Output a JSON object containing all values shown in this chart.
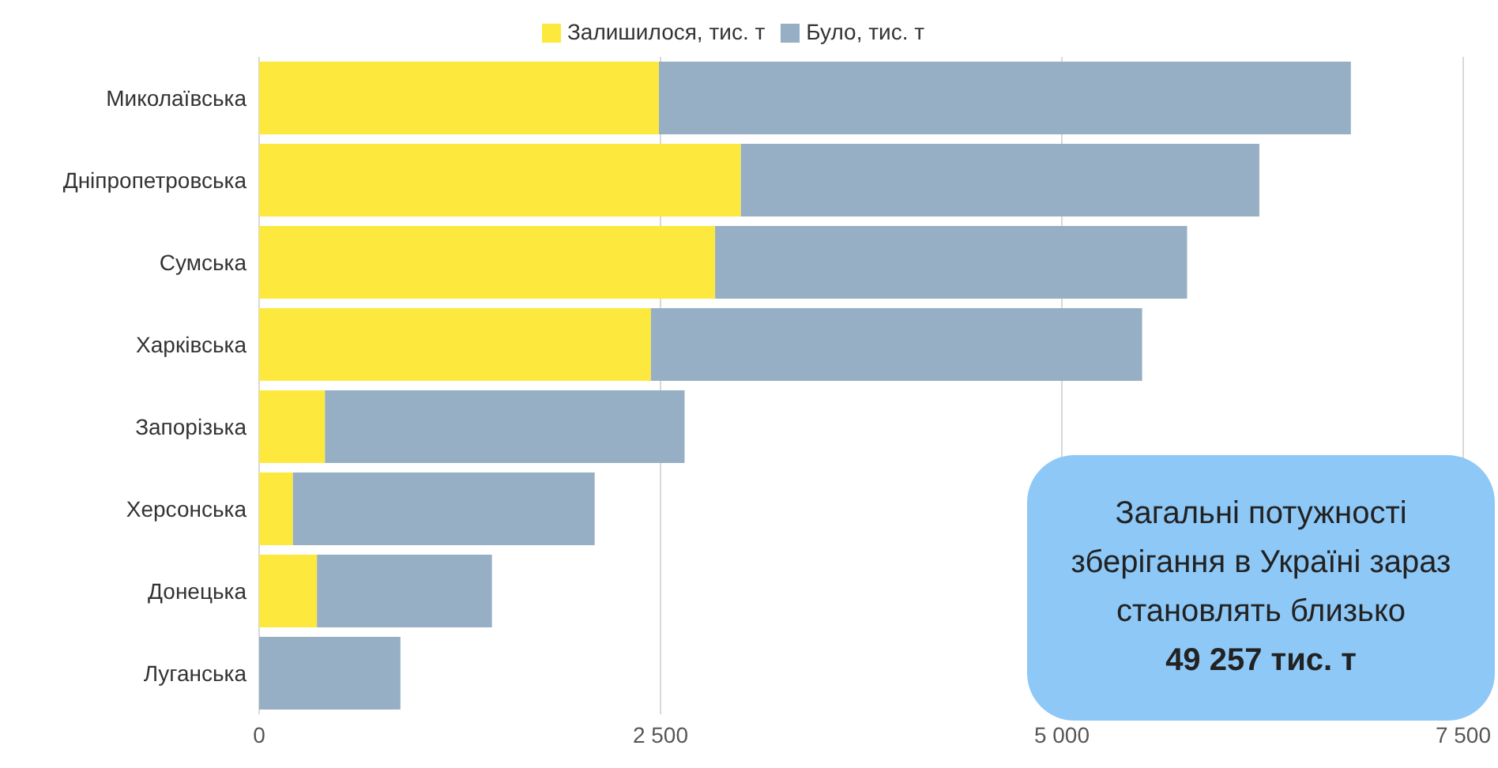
{
  "chart_data": {
    "type": "bar",
    "orientation": "horizontal",
    "stacked": true,
    "categories": [
      "Миколаївська",
      "Дніпропетровська",
      "Сумська",
      "Харківська",
      "Запорізька",
      "Херсонська",
      "Донецька",
      "Луганська"
    ],
    "series": [
      {
        "name": "Залишилося, тис. т",
        "color": "#fde93d",
        "values": [
          2490,
          3000,
          2840,
          2440,
          410,
          210,
          360,
          0
        ]
      },
      {
        "name": "Було, тис. т",
        "color": "#97afc4",
        "values": [
          4310,
          3230,
          2940,
          3060,
          2240,
          1880,
          1090,
          880
        ]
      }
    ],
    "xlim": [
      0,
      7500
    ],
    "xticks": [
      0,
      {
        "value": 2500,
        "label": "2 500"
      },
      {
        "value": 5000,
        "label": "5 000"
      },
      {
        "value": 7500,
        "label": "7 500"
      }
    ],
    "grid": "x",
    "legend": "top",
    "annotations": [
      "Загальні потужності зберігання в Україні зараз становлять близько",
      "49 257 тис. т"
    ]
  }
}
